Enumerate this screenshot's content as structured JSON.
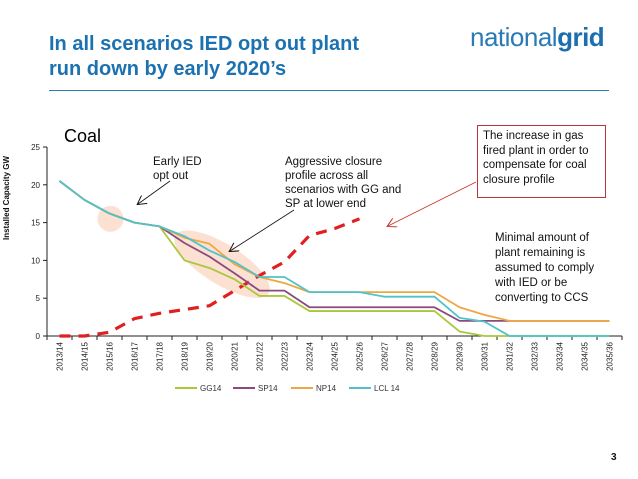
{
  "slide": {
    "title_line1": "In all scenarios IED opt out plant",
    "title_line2": "run down by early 2020’s",
    "logo_light": "national",
    "logo_bold": "grid",
    "page_number": "3"
  },
  "annotations": {
    "coal_label": "Coal",
    "early_ied": [
      "Early IED",
      "opt out"
    ],
    "aggressive": [
      "Aggressive closure",
      "profile across all",
      "scenarios with GG and",
      "SP at lower end"
    ],
    "gas_box": [
      "The increase in gas",
      "fired plant in order to",
      "compensate for coal",
      "closure profile"
    ],
    "minimal": [
      "Minimal amount of",
      "plant remaining is",
      "assumed to comply",
      "with IED or be",
      "converting to CCS"
    ]
  },
  "chart_data": {
    "type": "line",
    "title": "Coal",
    "xlabel": "",
    "ylabel": "Installed Capacity GW",
    "ylim": [
      0,
      25
    ],
    "yticks": [
      0,
      5,
      10,
      15,
      20,
      25
    ],
    "grid": false,
    "legend_position": "bottom",
    "categories": [
      "2013/14",
      "2014/15",
      "2015/16",
      "2016/17",
      "2017/18",
      "2018/19",
      "2019/20",
      "2020/21",
      "2021/22",
      "2022/23",
      "2023/24",
      "2024/25",
      "2025/26",
      "2026/27",
      "2027/28",
      "2028/29",
      "2029/30",
      "2030/31",
      "2031/32",
      "2032/33",
      "2033/34",
      "2034/35",
      "2035/36"
    ],
    "series": [
      {
        "name": "GG14",
        "color": "#a9c83c",
        "values": [
          20.5,
          18.0,
          16.2,
          15.0,
          14.5,
          10.0,
          9.0,
          7.5,
          5.3,
          5.3,
          3.3,
          3.3,
          3.3,
          3.3,
          3.3,
          3.3,
          0.6,
          0,
          0,
          0,
          0,
          0,
          0
        ]
      },
      {
        "name": "SP14",
        "color": "#8b4a7a",
        "values": [
          20.5,
          18.0,
          16.2,
          15.0,
          14.5,
          12.3,
          10.5,
          8.3,
          6.0,
          6.0,
          3.8,
          3.8,
          3.8,
          3.8,
          3.8,
          3.8,
          2.0,
          2.0,
          2.0,
          2.0,
          2.0,
          2.0,
          2.0
        ]
      },
      {
        "name": "NP14",
        "color": "#f0a640",
        "values": [
          20.5,
          18.0,
          16.2,
          15.0,
          14.5,
          13.0,
          12.2,
          9.5,
          7.8,
          7.0,
          5.8,
          5.8,
          5.8,
          5.8,
          5.8,
          5.8,
          3.8,
          2.8,
          2.0,
          2.0,
          2.0,
          2.0,
          2.0
        ]
      },
      {
        "name": "LCL 14",
        "color": "#4fc3c8",
        "values": [
          20.5,
          18.0,
          16.2,
          15.0,
          14.5,
          13.2,
          11.3,
          9.8,
          7.8,
          7.8,
          5.8,
          5.8,
          5.8,
          5.2,
          5.2,
          5.2,
          2.4,
          1.9,
          0,
          0,
          0,
          0,
          0
        ]
      }
    ],
    "overlay_series": {
      "name": "Gas increase (unlabelled)",
      "color": "#e02020",
      "style": "dashed",
      "values": [
        0,
        0,
        0.5,
        2.3,
        3.0,
        3.5,
        4.0,
        6.0,
        8.0,
        9.8,
        13.3,
        14.2,
        15.5
      ]
    },
    "highlights": [
      {
        "category": "2015/16",
        "value": 15.5,
        "color": "#fbdccb"
      },
      {
        "category_range": [
          "2018/19",
          "2021/22"
        ],
        "value_range": [
          6,
          13
        ],
        "color": "#fbdccb"
      }
    ]
  }
}
